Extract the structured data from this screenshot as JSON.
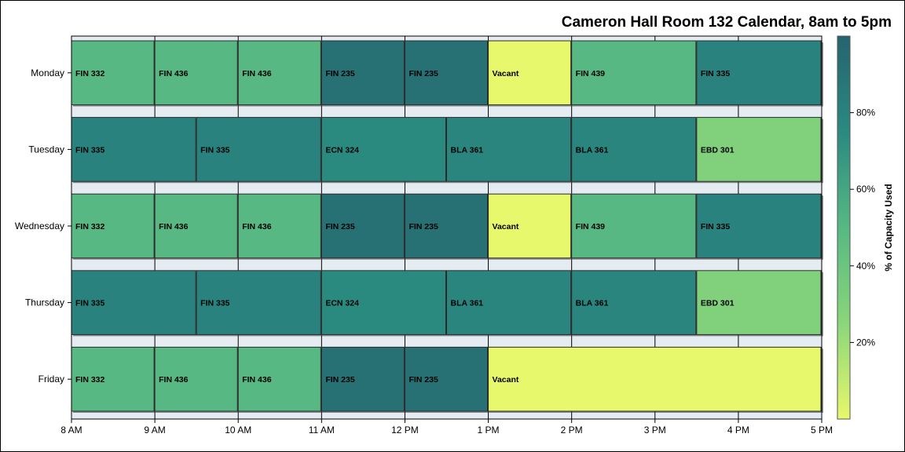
{
  "chart_data": {
    "type": "bar",
    "orientation": "horizontal-timeline",
    "title": "Cameron Hall Room 132 Calendar, 8am to 5pm",
    "xlim": [
      "8 AM",
      "5 PM"
    ],
    "x_ticks": [
      "8 AM",
      "9 AM",
      "10 AM",
      "11 AM",
      "12 PM",
      "1 PM",
      "2 PM",
      "3 PM",
      "4 PM",
      "5 PM"
    ],
    "categories": [
      "Monday",
      "Tuesday",
      "Wednesday",
      "Thursday",
      "Friday"
    ],
    "colorbar": {
      "label": "% of Capacity Used",
      "ticks": [
        "20%",
        "40%",
        "60%",
        "80%"
      ],
      "tick_values": [
        20,
        40,
        60,
        80
      ],
      "range": [
        0,
        100
      ],
      "colors": [
        "#e8f86c",
        "#8ad67a",
        "#57b883",
        "#2a8a80",
        "#25646f"
      ]
    },
    "grid": true,
    "schedule": [
      {
        "day": "Monday",
        "events": [
          {
            "label": "FIN 332",
            "start": 8,
            "end": 9,
            "capacity": 50
          },
          {
            "label": "FIN 436",
            "start": 9,
            "end": 10,
            "capacity": 50
          },
          {
            "label": "FIN 436",
            "start": 10,
            "end": 11,
            "capacity": 50
          },
          {
            "label": "FIN 235",
            "start": 11,
            "end": 12,
            "capacity": 92
          },
          {
            "label": "FIN 235",
            "start": 12,
            "end": 13,
            "capacity": 92
          },
          {
            "label": "Vacant",
            "start": 13,
            "end": 14,
            "capacity": 0
          },
          {
            "label": "FIN 439",
            "start": 14,
            "end": 15.5,
            "capacity": 50
          },
          {
            "label": "FIN 335",
            "start": 15.5,
            "end": 17,
            "capacity": 80
          }
        ]
      },
      {
        "day": "Tuesday",
        "events": [
          {
            "label": "FIN 335",
            "start": 8,
            "end": 9.5,
            "capacity": 80
          },
          {
            "label": "FIN 335",
            "start": 9.5,
            "end": 11,
            "capacity": 80
          },
          {
            "label": "ECN 324",
            "start": 11,
            "end": 12.5,
            "capacity": 75
          },
          {
            "label": "BLA 361",
            "start": 12.5,
            "end": 14,
            "capacity": 78
          },
          {
            "label": "BLA 361",
            "start": 14,
            "end": 15.5,
            "capacity": 78
          },
          {
            "label": "EBD 301",
            "start": 15.5,
            "end": 17,
            "capacity": 30
          }
        ]
      },
      {
        "day": "Wednesday",
        "events": [
          {
            "label": "FIN 332",
            "start": 8,
            "end": 9,
            "capacity": 50
          },
          {
            "label": "FIN 436",
            "start": 9,
            "end": 10,
            "capacity": 50
          },
          {
            "label": "FIN 436",
            "start": 10,
            "end": 11,
            "capacity": 50
          },
          {
            "label": "FIN 235",
            "start": 11,
            "end": 12,
            "capacity": 92
          },
          {
            "label": "FIN 235",
            "start": 12,
            "end": 13,
            "capacity": 92
          },
          {
            "label": "Vacant",
            "start": 13,
            "end": 14,
            "capacity": 0
          },
          {
            "label": "FIN 439",
            "start": 14,
            "end": 15.5,
            "capacity": 50
          },
          {
            "label": "FIN 335",
            "start": 15.5,
            "end": 17,
            "capacity": 80
          }
        ]
      },
      {
        "day": "Thursday",
        "events": [
          {
            "label": "FIN 335",
            "start": 8,
            "end": 9.5,
            "capacity": 80
          },
          {
            "label": "FIN 335",
            "start": 9.5,
            "end": 11,
            "capacity": 80
          },
          {
            "label": "ECN 324",
            "start": 11,
            "end": 12.5,
            "capacity": 75
          },
          {
            "label": "BLA 361",
            "start": 12.5,
            "end": 14,
            "capacity": 78
          },
          {
            "label": "BLA 361",
            "start": 14,
            "end": 15.5,
            "capacity": 78
          },
          {
            "label": "EBD 301",
            "start": 15.5,
            "end": 17,
            "capacity": 30
          }
        ]
      },
      {
        "day": "Friday",
        "events": [
          {
            "label": "FIN 332",
            "start": 8,
            "end": 9,
            "capacity": 50
          },
          {
            "label": "FIN 436",
            "start": 9,
            "end": 10,
            "capacity": 50
          },
          {
            "label": "FIN 436",
            "start": 10,
            "end": 11,
            "capacity": 50
          },
          {
            "label": "FIN 235",
            "start": 11,
            "end": 12,
            "capacity": 92
          },
          {
            "label": "FIN 235",
            "start": 12,
            "end": 13,
            "capacity": 92
          },
          {
            "label": "Vacant",
            "start": 13,
            "end": 17,
            "capacity": 0
          }
        ]
      }
    ]
  }
}
